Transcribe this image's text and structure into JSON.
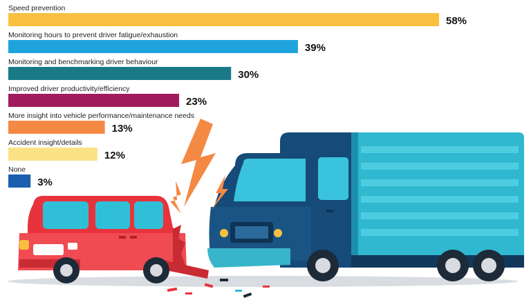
{
  "chart_data": {
    "type": "bar",
    "orientation": "horizontal",
    "categories": [
      "Speed prevention",
      "Monitoring hours to prevent driver fatigue/exhaustion",
      "Monitoring and benchmarking driver behaviour",
      "Improved driver productivity/efficiency",
      "More insight into vehicle performance/maintenance needs",
      "Accident insight/details",
      "None"
    ],
    "values": [
      58,
      39,
      30,
      23,
      13,
      12,
      3
    ],
    "value_labels": [
      "58%",
      "39%",
      "30%",
      "23%",
      "13%",
      "12%",
      "3%"
    ],
    "colors": [
      "#f9c03f",
      "#1ea3dc",
      "#197a86",
      "#a01c5d",
      "#f48944",
      "#fbe285",
      "#1a5fb0"
    ],
    "xlim": [
      0,
      60
    ],
    "grid": false,
    "legend": "none"
  },
  "illustration": {
    "icons": [
      "red-car-icon",
      "blue-truck-icon",
      "lightning-bolt-icon",
      "debris-icon"
    ]
  }
}
